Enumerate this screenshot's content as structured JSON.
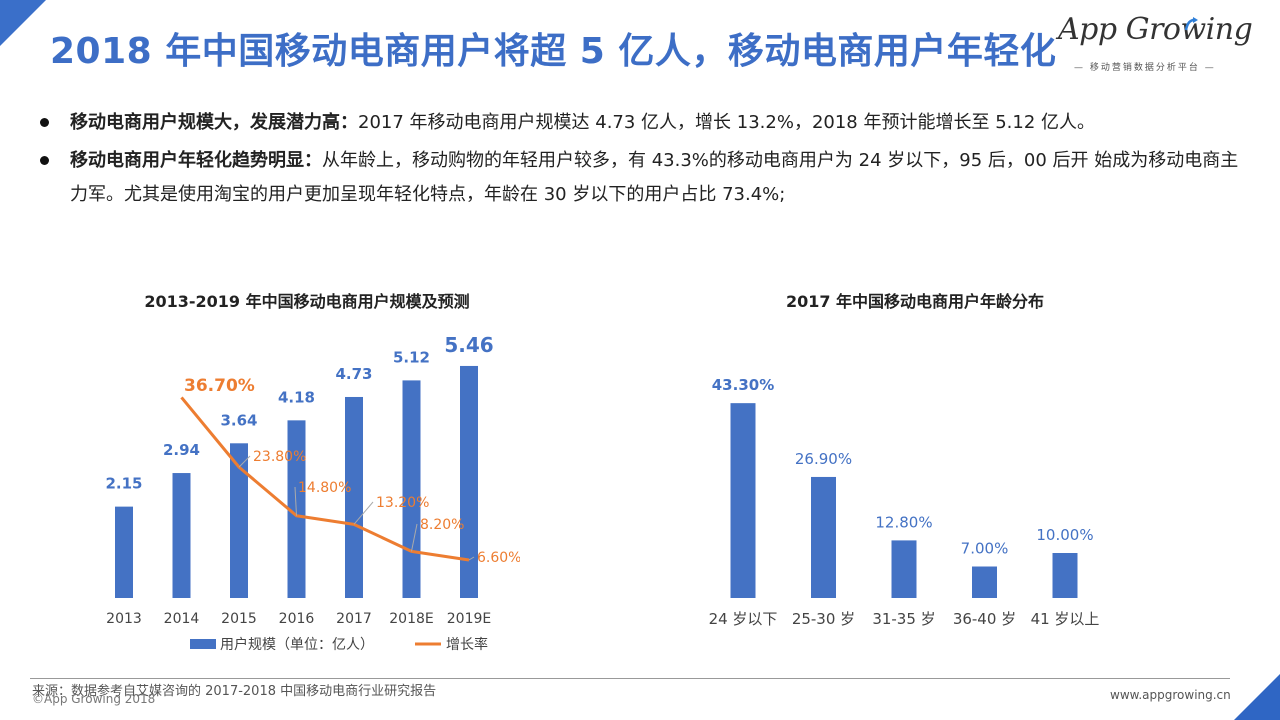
{
  "header": {
    "title": "2018 年中国移动电商用户将超 5 亿人，移动电商用户年轻化",
    "logo_text": "App Growing",
    "logo_sub": "— 移动营销数据分析平台 —"
  },
  "bullets": [
    {
      "bold": "移动电商用户规模大，发展潜力高：",
      "text": "2017 年移动电商用户规模达 4.73 亿人，增长 13.2%，2018 年预计能增长至 5.12 亿人。"
    },
    {
      "bold": "移动电商用户年轻化趋势明显：",
      "text": "从年龄上，移动购物的年轻用户较多，有 43.3%的移动电商用户为 24 岁以下，95 后，00 后开 始成为移动电商主力军。尤其是使用淘宝的用户更加呈现年轻化特点，年龄在 30 岁以下的用户占比 73.4%;"
    }
  ],
  "chart_data": [
    {
      "type": "bar",
      "title": "2013-2019 年中国移动电商用户规模及预测",
      "categories": [
        "2013",
        "2014",
        "2015",
        "2016",
        "2017",
        "2018E",
        "2019E"
      ],
      "series": [
        {
          "name": "用户规模（单位：亿人）",
          "type": "bar",
          "values": [
            2.15,
            2.94,
            3.64,
            4.18,
            4.73,
            5.12,
            5.46
          ],
          "labels": [
            "2.15",
            "2.94",
            "3.64",
            "4.18",
            "4.73",
            "5.12",
            "5.46"
          ],
          "color": "#4472c4"
        },
        {
          "name": "增长率",
          "type": "line",
          "values": [
            null,
            36.7,
            23.8,
            14.8,
            13.2,
            8.2,
            6.6
          ],
          "labels": [
            "",
            "36.70%",
            "23.80%",
            "14.80%",
            "13.20%",
            "8.20%",
            "6.60%"
          ],
          "color": "#ed7d31"
        }
      ],
      "legend_position": "bottom",
      "grid": false
    },
    {
      "type": "bar",
      "title": "2017 年中国移动电商用户年龄分布",
      "categories": [
        "24 岁以下",
        "25-30 岁",
        "31-35 岁",
        "36-40 岁",
        "41 岁以上"
      ],
      "values": [
        43.3,
        26.9,
        12.8,
        7.0,
        10.0
      ],
      "labels": [
        "43.30%",
        "26.90%",
        "12.80%",
        "7.00%",
        "10.00%"
      ],
      "color": "#4472c4",
      "grid": false
    }
  ],
  "footer": {
    "source": "来源：数据参考自艾媒咨询的 2017-2018 中国移动电商行业研究报告",
    "copyright": "©App Growing 2018",
    "website": "www.appgrowing.cn"
  }
}
